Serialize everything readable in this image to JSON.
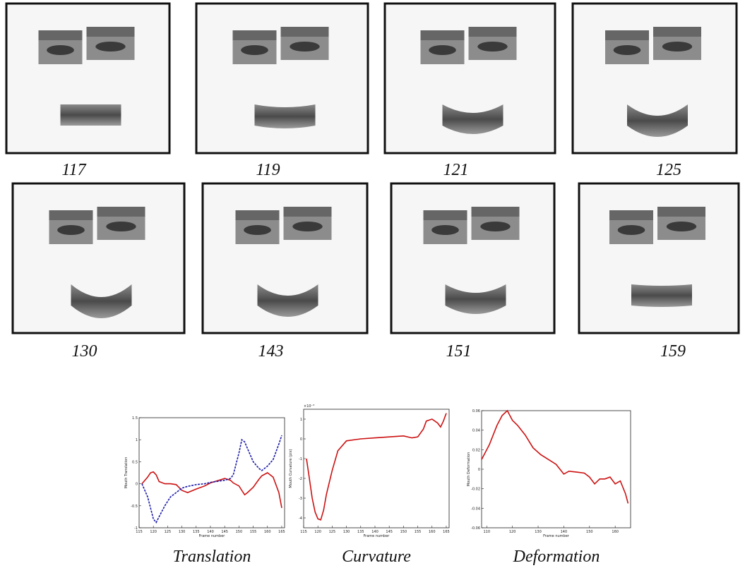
{
  "faces": [
    {
      "label": "117"
    },
    {
      "label": "119"
    },
    {
      "label": "121"
    },
    {
      "label": "125"
    },
    {
      "label": "130"
    },
    {
      "label": "143"
    },
    {
      "label": "151"
    },
    {
      "label": "159"
    }
  ],
  "chart_data": [
    {
      "type": "line",
      "caption": "Translation",
      "xlabel": "Frame number",
      "ylabel": "Mouth Translation",
      "xlim": [
        115,
        166
      ],
      "xticks": [
        115,
        120,
        125,
        130,
        135,
        140,
        145,
        150,
        155,
        160,
        165
      ],
      "ylim": [
        -1,
        1.5
      ],
      "yticks": [
        -1,
        -0.5,
        0,
        0.5,
        1,
        1.5
      ],
      "x": [
        116,
        118,
        119,
        120,
        121,
        122,
        124,
        126,
        128,
        130,
        132,
        135,
        138,
        140,
        143,
        145,
        147,
        148,
        150,
        151,
        152,
        153,
        155,
        157,
        158,
        160,
        162,
        164,
        165
      ],
      "series": [
        {
          "color": "#cc1111",
          "dash": false,
          "values": [
            0,
            0.15,
            0.25,
            0.27,
            0.2,
            0.05,
            0,
            0,
            -0.02,
            -0.15,
            -0.2,
            -0.12,
            -0.05,
            0.02,
            0.08,
            0.12,
            0.08,
            0.02,
            -0.05,
            -0.15,
            -0.25,
            -0.2,
            -0.08,
            0.1,
            0.18,
            0.25,
            0.15,
            -0.2,
            -0.55
          ]
        },
        {
          "color": "#1a1aaa",
          "dash": true,
          "values": [
            0,
            -0.3,
            -0.55,
            -0.8,
            -0.88,
            -0.75,
            -0.5,
            -0.3,
            -0.2,
            -0.1,
            -0.06,
            -0.02,
            0,
            0.03,
            0.06,
            0.08,
            0.12,
            0.2,
            0.7,
            1.0,
            0.95,
            0.8,
            0.5,
            0.35,
            0.3,
            0.4,
            0.55,
            0.9,
            1.1
          ]
        }
      ]
    },
    {
      "type": "line",
      "caption": "Curvature",
      "xlabel": "Frame number",
      "ylabel": "Mouth Curvature (pix)",
      "ymultiplier": "×10⁻³",
      "xlim": [
        115,
        166
      ],
      "xticks": [
        115,
        120,
        125,
        130,
        135,
        140,
        145,
        150,
        155,
        160,
        165
      ],
      "ylim": [
        -4.5,
        1.5
      ],
      "yticks": [
        -4,
        -3,
        -2,
        -1,
        0,
        1
      ],
      "x": [
        116,
        117,
        118,
        119,
        120,
        121,
        122,
        123,
        125,
        127,
        130,
        135,
        140,
        145,
        150,
        153,
        155,
        157,
        158,
        160,
        162,
        163,
        164,
        165
      ],
      "series": [
        {
          "color": "#cc1111",
          "dash": false,
          "values": [
            -1,
            -2,
            -3,
            -3.7,
            -4.05,
            -4.1,
            -3.6,
            -2.8,
            -1.6,
            -0.6,
            -0.1,
            0,
            0.05,
            0.1,
            0.15,
            0.05,
            0.1,
            0.5,
            0.9,
            1.0,
            0.8,
            0.6,
            0.9,
            1.3
          ]
        }
      ]
    },
    {
      "type": "line",
      "caption": "Deformation",
      "xlabel": "Frame number",
      "ylabel": "Mouth Deformation",
      "xlim": [
        108,
        166
      ],
      "xticks": [
        110,
        120,
        130,
        140,
        150,
        160
      ],
      "ylim": [
        -0.06,
        0.06
      ],
      "yticks": [
        -0.06,
        -0.04,
        -0.02,
        0,
        0.02,
        0.04,
        0.06
      ],
      "x": [
        108,
        111,
        114,
        116,
        118,
        120,
        122,
        125,
        128,
        131,
        134,
        137,
        140,
        142,
        145,
        148,
        150,
        152,
        154,
        156,
        158,
        160,
        162,
        164,
        165
      ],
      "series": [
        {
          "color": "#cc1111",
          "dash": false,
          "values": [
            0.01,
            0.025,
            0.045,
            0.055,
            0.06,
            0.05,
            0.045,
            0.035,
            0.022,
            0.015,
            0.01,
            0.005,
            -0.005,
            -0.002,
            -0.003,
            -0.004,
            -0.008,
            -0.015,
            -0.01,
            -0.01,
            -0.008,
            -0.015,
            -0.012,
            -0.025,
            -0.035
          ]
        }
      ]
    }
  ]
}
